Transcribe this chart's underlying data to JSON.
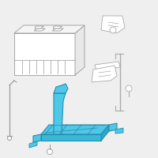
{
  "bg_color": "#efefef",
  "battery_stroke": "#999999",
  "tray_color": "#4dc8e8",
  "tray_stroke": "#2a8aaa",
  "bracket_stroke": "#aaaaaa",
  "lw": 0.6
}
